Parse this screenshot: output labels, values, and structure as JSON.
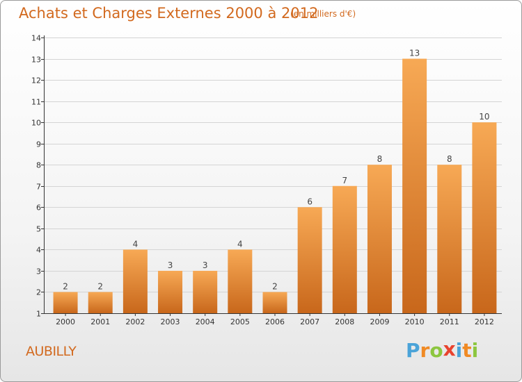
{
  "header": {
    "title": "Achats et Charges Externes 2000 à 2012",
    "unit": "(en milliers d'€)"
  },
  "footer": {
    "location": "AUBILLY",
    "brand": "Proxiti",
    "brand_letters": [
      {
        "ch": "P",
        "color": "#4aa3d8"
      },
      {
        "ch": "r",
        "color": "#f08a24"
      },
      {
        "ch": "o",
        "color": "#8cc63f"
      },
      {
        "ch": "x",
        "color": "#e8432e"
      },
      {
        "ch": "i",
        "color": "#4aa3d8"
      },
      {
        "ch": "t",
        "color": "#f08a24"
      },
      {
        "ch": "i",
        "color": "#8cc63f"
      }
    ]
  },
  "colors": {
    "title": "#d2691e",
    "bar_light": "#f7a955",
    "bar_dark": "#c8671b",
    "axis": "#333333",
    "grid": "#cfcfcf"
  },
  "chart_data": {
    "type": "bar",
    "categories": [
      "2000",
      "2001",
      "2002",
      "2003",
      "2004",
      "2005",
      "2006",
      "2007",
      "2008",
      "2009",
      "2010",
      "2011",
      "2012"
    ],
    "values": [
      2,
      2,
      4,
      3,
      3,
      4,
      2,
      6,
      7,
      8,
      13,
      8,
      10
    ],
    "ylim": [
      1,
      14
    ],
    "yticks": [
      1,
      2,
      3,
      4,
      5,
      6,
      7,
      8,
      9,
      10,
      11,
      12,
      13,
      14
    ],
    "grid": true,
    "show_value_labels": true
  }
}
